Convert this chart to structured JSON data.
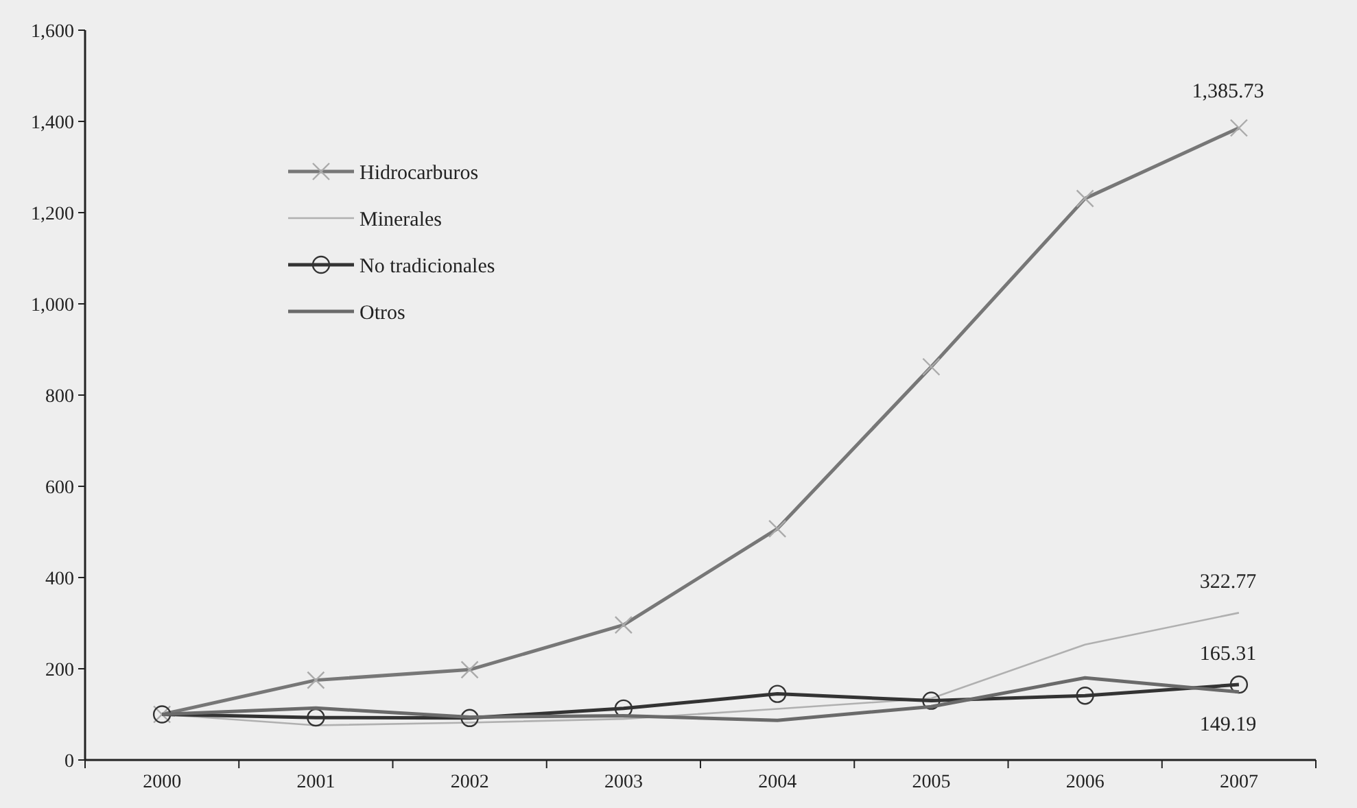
{
  "chart_data": {
    "type": "line",
    "categories": [
      "2000",
      "2001",
      "2002",
      "2003",
      "2004",
      "2005",
      "2006",
      "2007"
    ],
    "ylim": [
      0,
      1600
    ],
    "yticks": [
      0,
      {
        "value": 200,
        "label": "200"
      },
      {
        "value": 400,
        "label": "400"
      },
      {
        "value": 600,
        "label": "600"
      },
      {
        "value": 800,
        "label": "800"
      },
      {
        "value": 1000,
        "label": "1,000"
      },
      {
        "value": 1200,
        "label": "1,200"
      },
      {
        "value": 1400,
        "label": "1,400"
      },
      {
        "value": 1600,
        "label": "1,600"
      }
    ],
    "grid": false,
    "legend": "top left",
    "series": [
      {
        "name": "Hidrocarburos",
        "color": "#777777",
        "marker": "cross",
        "values": [
          100,
          175,
          198,
          296,
          507,
          862,
          1231,
          1385.73
        ],
        "value_labels": [
          null,
          null,
          null,
          null,
          null,
          null,
          null,
          "1,385.73"
        ]
      },
      {
        "name": "Minerales",
        "color": "#b0b0b0",
        "marker": "none",
        "values": [
          100,
          76,
          82,
          90,
          112,
          135,
          253,
          322.77
        ],
        "value_labels": [
          null,
          null,
          null,
          null,
          null,
          null,
          null,
          "322.77"
        ]
      },
      {
        "name": "No tradicionales",
        "color": "#333333",
        "marker": "circle",
        "values": [
          100,
          93,
          92,
          113,
          145,
          130,
          141,
          165.31
        ],
        "value_labels": [
          null,
          null,
          null,
          null,
          null,
          null,
          null,
          "165.31"
        ]
      },
      {
        "name": "Otros",
        "color": "#6a6a6a",
        "marker": "none",
        "values": [
          100,
          114,
          94,
          97,
          87,
          117,
          180,
          149.19
        ],
        "value_labels": [
          null,
          null,
          null,
          null,
          null,
          null,
          null,
          "149.19"
        ]
      }
    ]
  }
}
